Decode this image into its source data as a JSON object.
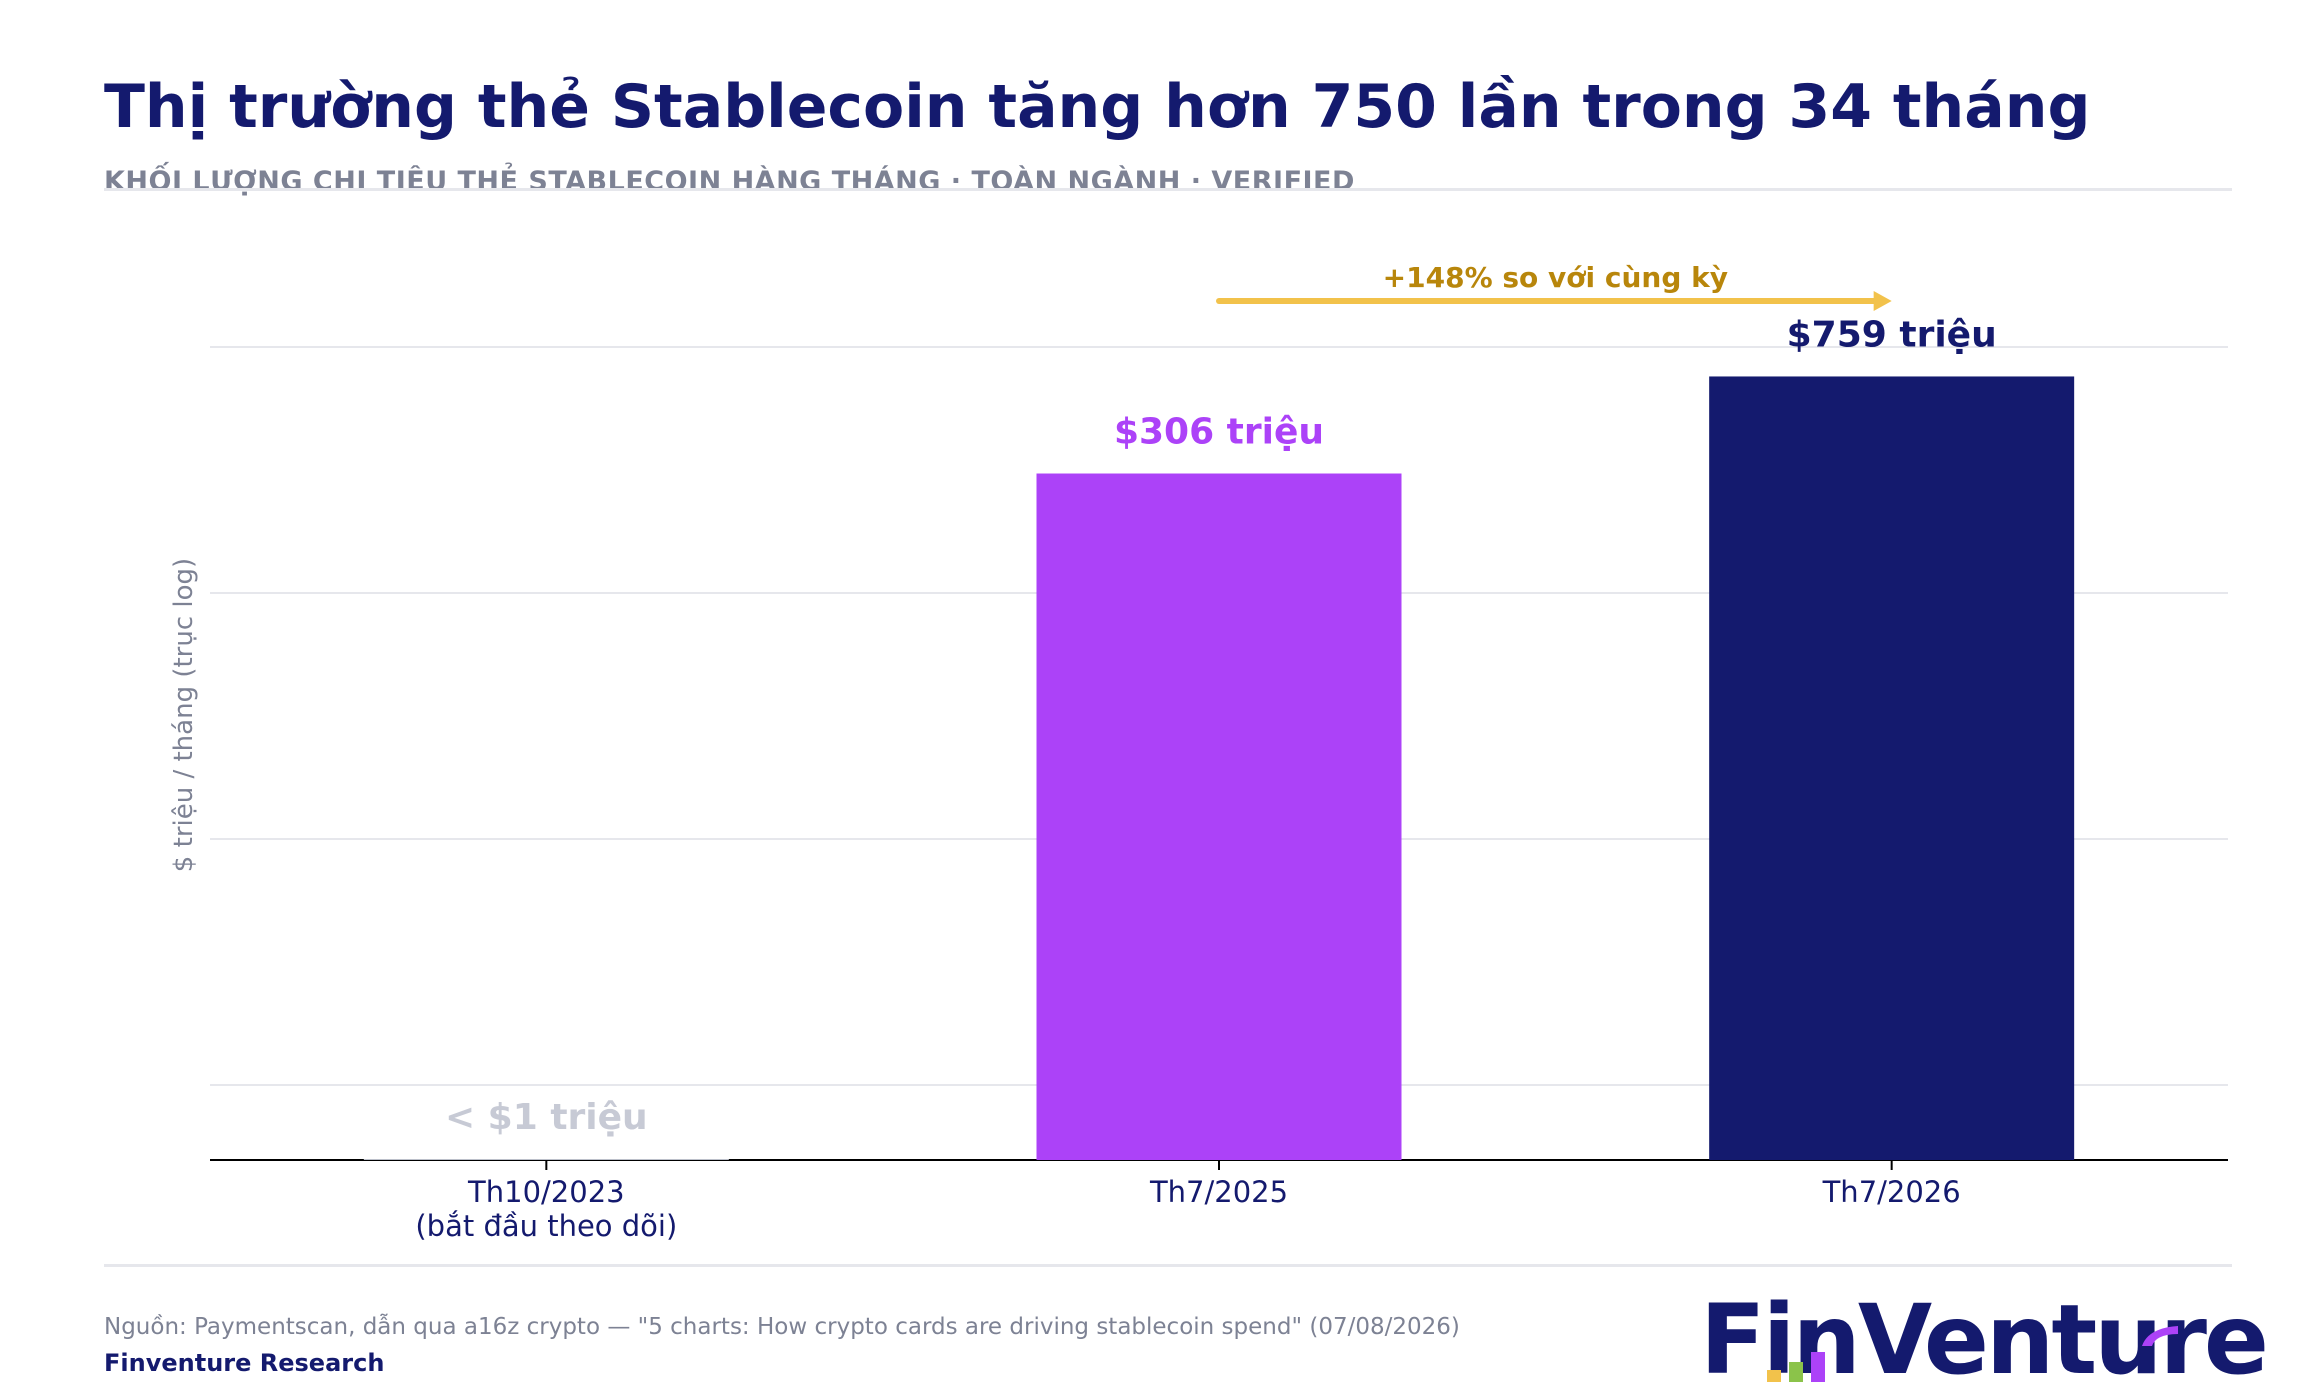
{
  "header": {
    "title": "Thị trường thẻ Stablecoin tăng hơn 750 lần trong 34 tháng",
    "subtitle": "KHỐI LƯỢNG CHI TIÊU THẺ STABLECOIN HÀNG THÁNG · TOÀN NGÀNH · VERIFIED"
  },
  "chart_data": {
    "type": "bar",
    "ylabel": "$ triệu / tháng (trục log)",
    "yscale": "log",
    "grid": "horizontal",
    "categories": [
      "Th10/2023\n(bắt đầu theo dõi)",
      "Th7/2025",
      "Th7/2026"
    ],
    "values": [
      0.5,
      306,
      759
    ],
    "value_labels": [
      "< $1 triệu",
      "$306 triệu",
      "$759 triệu"
    ],
    "bar_colors": [
      "#c7cad5",
      "#ac42f8",
      "#141a6e"
    ],
    "label_colors": [
      "#c7cad5",
      "#ac42f8",
      "#141a6e"
    ],
    "annotation": {
      "text": "+148% so với cùng kỳ",
      "from": "Th7/2025",
      "to": "Th7/2026",
      "color": "#f2c24b",
      "text_color": "#b8860b"
    }
  },
  "footer": {
    "source": "Nguồn: Paymentscan, dẫn qua a16z crypto — \"5 charts: How crypto cards are driving stablecoin spend\" (07/08/2026)",
    "org": "Finventure Research",
    "logo_text": "FinVenture"
  },
  "colors": {
    "navy": "#141a6e",
    "purple": "#ac42f8",
    "gray": "#c7cad5",
    "gold": "#f2c24b",
    "text_muted": "#7d8294"
  }
}
